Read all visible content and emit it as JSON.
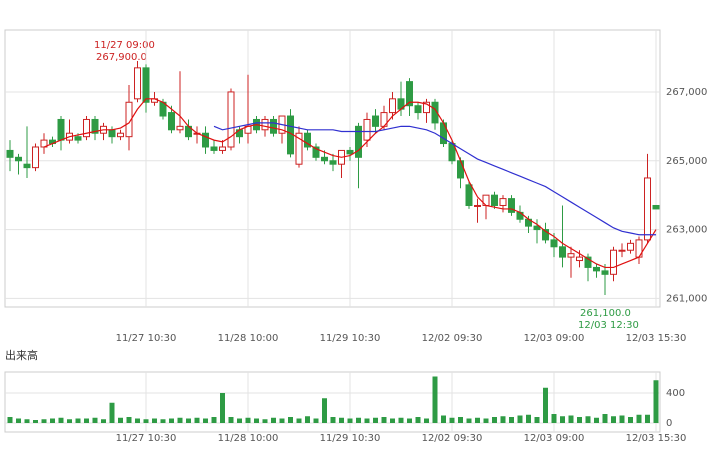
{
  "chart_data": [
    {
      "type": "candlestick",
      "categories": [
        null,
        null,
        null,
        null,
        null,
        null,
        null,
        null,
        null,
        null,
        null,
        null,
        null,
        null,
        null,
        null,
        "11/27 10:30",
        null,
        null,
        null,
        null,
        null,
        null,
        null,
        null,
        null,
        null,
        null,
        "11/28 10:00",
        null,
        null,
        null,
        null,
        null,
        null,
        null,
        null,
        null,
        null,
        null,
        "11/29 10:30",
        null,
        null,
        null,
        null,
        null,
        null,
        null,
        null,
        null,
        null,
        null,
        "12/02 09:30",
        null,
        null,
        null,
        null,
        null,
        null,
        null,
        null,
        null,
        null,
        null,
        "12/03 09:00",
        null,
        null,
        null,
        null,
        null,
        null,
        null,
        null,
        null,
        null,
        null,
        "12/03 15:30"
      ],
      "open": [
        265300,
        265100,
        264900,
        264800,
        265400,
        265600,
        266200,
        265600,
        265700,
        265700,
        266200,
        265800,
        265900,
        265700,
        265700,
        266800,
        267700,
        266700,
        266700,
        266400,
        265900,
        266000,
        265800,
        265800,
        265400,
        265300,
        265400,
        265900,
        265800,
        266200,
        265900,
        266200,
        265800,
        266300,
        264900,
        265800,
        265400,
        265100,
        265000,
        264900,
        265300,
        266000,
        265600,
        266300,
        266000,
        266400,
        266800,
        267300,
        266600,
        266400,
        266700,
        266100,
        265500,
        265000,
        264300,
        263700,
        263700,
        264000,
        263700,
        263900,
        263500,
        263300,
        263100,
        263000,
        262700,
        262500,
        262200,
        262100,
        262200,
        261900,
        261800,
        261700,
        262400,
        262400,
        262200,
        262700,
        263700
      ],
      "high": [
        265600,
        265200,
        266000,
        265500,
        265800,
        265700,
        266300,
        266200,
        265800,
        266300,
        266300,
        266100,
        266000,
        265900,
        267200,
        267900,
        267800,
        267000,
        266800,
        266600,
        267600,
        266200,
        266000,
        266000,
        265600,
        265600,
        267100,
        266000,
        267500,
        266300,
        266300,
        266300,
        266300,
        266500,
        266000,
        265900,
        265500,
        265300,
        265200,
        265300,
        265400,
        266100,
        266400,
        266500,
        266600,
        267000,
        267300,
        267400,
        266700,
        266800,
        266800,
        266200,
        265600,
        265100,
        264400,
        263900,
        264000,
        264100,
        264000,
        264000,
        263700,
        263400,
        263300,
        263200,
        262900,
        263700,
        262500,
        262400,
        262300,
        262000,
        262000,
        262500,
        262600,
        262700,
        262800,
        265200,
        263700
      ],
      "low": [
        264700,
        264600,
        264500,
        264700,
        265200,
        265400,
        265300,
        265500,
        265500,
        265600,
        265600,
        265600,
        265500,
        265600,
        265300,
        266700,
        266400,
        266600,
        266200,
        265800,
        265800,
        265600,
        265500,
        265200,
        265200,
        265200,
        265300,
        265500,
        265500,
        265800,
        265700,
        265700,
        265500,
        265100,
        264800,
        265300,
        265000,
        264900,
        264700,
        264500,
        265000,
        264200,
        265400,
        265800,
        265900,
        266200,
        266300,
        266300,
        266200,
        266100,
        265900,
        265400,
        264900,
        264200,
        263600,
        263200,
        263300,
        263600,
        263500,
        263400,
        263200,
        262900,
        262600,
        262600,
        262200,
        261900,
        261600,
        261900,
        261500,
        261600,
        261100,
        261500,
        262200,
        262300,
        262000,
        262600,
        263600
      ],
      "close": [
        265100,
        265000,
        264800,
        265400,
        265600,
        265500,
        265600,
        265800,
        265600,
        266200,
        265800,
        266000,
        265700,
        265800,
        266700,
        267700,
        266700,
        266800,
        266300,
        265900,
        266000,
        265700,
        265800,
        265400,
        265300,
        265400,
        267000,
        265700,
        266000,
        265900,
        266200,
        265800,
        266300,
        265200,
        265800,
        265400,
        265100,
        265000,
        264900,
        265300,
        265200,
        265100,
        266200,
        266000,
        266400,
        266800,
        266500,
        266600,
        266400,
        266700,
        266100,
        265500,
        265000,
        264500,
        263700,
        263700,
        264000,
        263700,
        263900,
        263500,
        263300,
        263100,
        263000,
        262700,
        262500,
        262200,
        262300,
        262200,
        261900,
        261800,
        261700,
        262400,
        262400,
        262600,
        262700,
        264500,
        263600
      ],
      "up_color": "#cc2222",
      "down_color": "#2e9b44",
      "lines": [
        {
          "color": "#e01010",
          "values": [
            null,
            null,
            null,
            null,
            265400,
            265500,
            265600,
            265700,
            265750,
            265800,
            265850,
            265900,
            265900,
            265950,
            266100,
            266500,
            266800,
            266800,
            266700,
            266500,
            266300,
            266000,
            265800,
            265700,
            265600,
            265550,
            265700,
            265900,
            266000,
            266050,
            266000,
            265950,
            265900,
            265800,
            265650,
            265500,
            265350,
            265250,
            265150,
            265100,
            265150,
            265300,
            265550,
            265800,
            266000,
            266300,
            266500,
            266700,
            266700,
            266650,
            266500,
            266100,
            265600,
            265000,
            264400,
            263950,
            263700,
            263650,
            263600,
            263600,
            263500,
            263300,
            263150,
            262950,
            262800,
            262600,
            262450,
            262300,
            262150,
            262000,
            261900,
            261900,
            262000,
            262100,
            262200,
            262600,
            263000
          ]
        },
        {
          "color": "#3030d0",
          "values": [
            null,
            null,
            null,
            null,
            null,
            null,
            null,
            null,
            null,
            null,
            null,
            null,
            null,
            null,
            null,
            null,
            null,
            null,
            null,
            null,
            null,
            null,
            null,
            null,
            266000,
            265900,
            265950,
            266000,
            266050,
            266100,
            266100,
            266100,
            266050,
            266000,
            265950,
            265900,
            265900,
            265900,
            265900,
            265850,
            265850,
            265850,
            265850,
            265850,
            265900,
            265950,
            266000,
            266000,
            265950,
            265900,
            265800,
            265650,
            265500,
            265350,
            265200,
            265050,
            264950,
            264850,
            264750,
            264650,
            264550,
            264450,
            264350,
            264250,
            264100,
            263950,
            263800,
            263650,
            263500,
            263350,
            263200,
            263050,
            262950,
            262900,
            262850,
            262850,
            262850
          ]
        }
      ],
      "ylim": [
        260750,
        268800
      ],
      "yticks": [
        {
          "value": 261000,
          "label": "261,000"
        },
        {
          "value": 263000,
          "label": "263,000"
        },
        {
          "value": 265000,
          "label": "265,000"
        },
        {
          "value": 267000,
          "label": "267,000"
        }
      ],
      "grid": true,
      "annotations": [
        "11/27 09:00",
        "267,900.0",
        "261,100.0",
        "12/03 12:30"
      ]
    },
    {
      "type": "bar",
      "title": "出来高",
      "color": "#2e9b44",
      "categories": [
        null,
        null,
        null,
        null,
        null,
        null,
        null,
        null,
        null,
        null,
        null,
        null,
        null,
        null,
        null,
        null,
        "11/27 10:30",
        null,
        null,
        null,
        null,
        null,
        null,
        null,
        null,
        null,
        null,
        null,
        "11/28 10:00",
        null,
        null,
        null,
        null,
        null,
        null,
        null,
        null,
        null,
        null,
        null,
        "11/29 10:30",
        null,
        null,
        null,
        null,
        null,
        null,
        null,
        null,
        null,
        null,
        null,
        "12/02 09:30",
        null,
        null,
        null,
        null,
        null,
        null,
        null,
        null,
        null,
        null,
        null,
        "12/03 09:00",
        null,
        null,
        null,
        null,
        null,
        null,
        null,
        null,
        null,
        null,
        null,
        "12/03 15:30"
      ],
      "values": [
        80,
        60,
        50,
        40,
        50,
        60,
        70,
        50,
        60,
        60,
        70,
        50,
        270,
        70,
        80,
        60,
        50,
        60,
        50,
        60,
        70,
        60,
        70,
        60,
        80,
        400,
        80,
        60,
        70,
        60,
        50,
        70,
        60,
        80,
        60,
        90,
        60,
        330,
        80,
        70,
        60,
        70,
        60,
        70,
        80,
        60,
        70,
        60,
        80,
        60,
        620,
        100,
        70,
        80,
        60,
        70,
        60,
        80,
        90,
        80,
        100,
        110,
        80,
        470,
        120,
        90,
        100,
        80,
        90,
        70,
        120,
        90,
        100,
        80,
        110,
        110,
        570
      ],
      "ylim": [
        -120,
        680
      ],
      "yticks": [
        0,
        400
      ],
      "grid": true
    }
  ]
}
